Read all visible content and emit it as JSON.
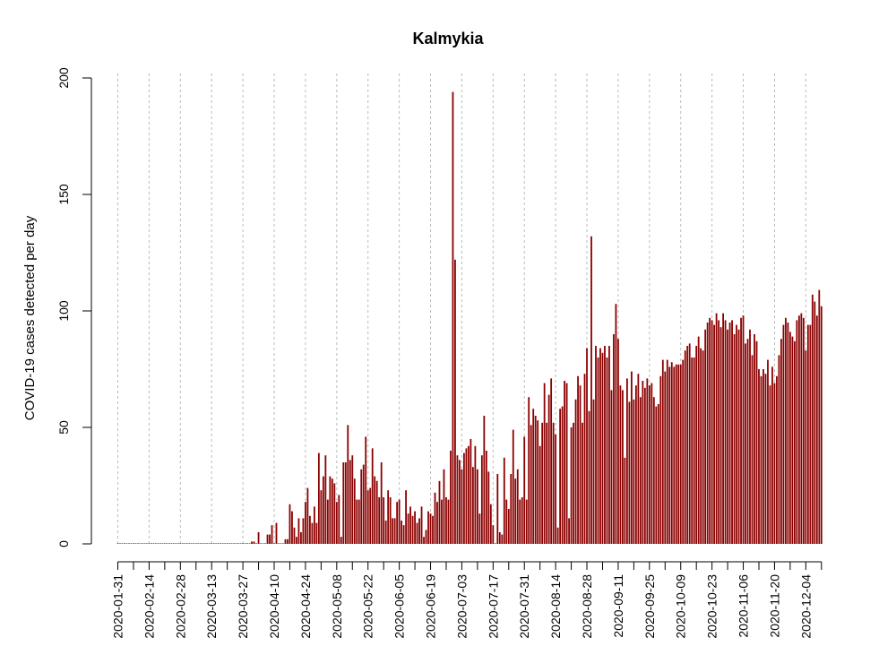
{
  "chart_data": {
    "type": "bar",
    "title": "Kalmykia",
    "xlabel": "",
    "ylabel": "COVID-19 cases detected per day",
    "ylim": [
      0,
      200
    ],
    "y_ticks": [
      "0",
      "50",
      "100",
      "150",
      "200"
    ],
    "x_tick_labels": [
      "2020-01-31",
      "2020-02-14",
      "2020-02-28",
      "2020-03-13",
      "2020-03-27",
      "2020-04-10",
      "2020-04-24",
      "2020-05-08",
      "2020-05-22",
      "2020-06-05",
      "2020-06-19",
      "2020-07-03",
      "2020-07-17",
      "2020-07-31",
      "2020-08-14",
      "2020-08-28",
      "2020-09-11",
      "2020-09-25",
      "2020-10-09",
      "2020-10-23",
      "2020-11-06",
      "2020-11-20",
      "2020-12-04"
    ],
    "start_date": "2020-01-31",
    "grid": "vertical dashed lines at label dates",
    "bar_color": "#8b0000",
    "values": [
      0,
      0,
      0,
      0,
      0,
      0,
      0,
      0,
      0,
      0,
      0,
      0,
      0,
      0,
      0,
      0,
      0,
      0,
      0,
      0,
      0,
      0,
      0,
      0,
      0,
      0,
      0,
      0,
      0,
      0,
      0,
      0,
      0,
      0,
      0,
      0,
      0,
      0,
      0,
      0,
      0,
      0,
      0,
      0,
      0,
      0,
      0,
      0,
      0,
      0,
      0,
      0,
      0,
      0,
      0,
      0,
      0,
      0,
      0,
      0,
      1,
      1,
      0,
      5,
      0,
      0,
      0,
      4,
      4,
      8,
      0,
      9,
      0,
      0,
      0,
      2,
      2,
      17,
      14,
      7,
      3,
      11,
      5,
      11,
      18,
      24,
      12,
      9,
      16,
      9,
      39,
      23,
      29,
      38,
      19,
      29,
      28,
      26,
      18,
      21,
      3,
      35,
      35,
      51,
      36,
      38,
      28,
      19,
      19,
      32,
      34,
      46,
      23,
      24,
      41,
      29,
      27,
      20,
      35,
      20,
      10,
      23,
      20,
      11,
      11,
      18,
      19,
      10,
      8,
      23,
      13,
      16,
      12,
      14,
      9,
      11,
      16,
      3,
      6,
      14,
      13,
      12,
      22,
      18,
      27,
      19,
      32,
      20,
      19,
      40,
      194,
      122,
      38,
      36,
      32,
      39,
      41,
      42,
      45,
      33,
      42,
      32,
      13,
      38,
      55,
      40,
      31,
      17,
      8,
      0,
      30,
      5,
      4,
      37,
      19,
      15,
      30,
      49,
      28,
      32,
      19,
      20,
      46,
      19,
      63,
      51,
      58,
      55,
      53,
      42,
      52,
      69,
      52,
      64,
      71,
      52,
      47,
      7,
      58,
      59,
      70,
      69,
      11,
      50,
      52,
      62,
      72,
      68,
      52,
      73,
      84,
      57,
      132,
      62,
      85,
      80,
      84,
      82,
      85,
      80,
      85,
      66,
      90,
      103,
      88,
      68,
      66,
      37,
      71,
      61,
      74,
      62,
      68,
      73,
      63,
      70,
      67,
      71,
      68,
      69,
      63,
      59,
      60,
      72,
      79,
      74,
      79,
      76,
      78,
      76,
      77,
      77,
      77,
      79,
      83,
      85,
      86,
      80,
      80,
      85,
      89,
      84,
      83,
      92,
      95,
      97,
      96,
      94,
      99,
      96,
      93,
      99,
      96,
      92,
      95,
      96,
      90,
      94,
      92,
      97,
      98,
      86,
      88,
      92,
      81,
      90,
      87,
      75,
      72,
      75,
      73,
      79,
      68,
      76,
      69,
      72,
      81,
      88,
      94,
      97,
      95,
      91,
      89,
      87,
      96,
      98,
      99,
      97,
      83,
      94,
      94,
      107,
      104,
      98,
      109,
      102
    ]
  }
}
